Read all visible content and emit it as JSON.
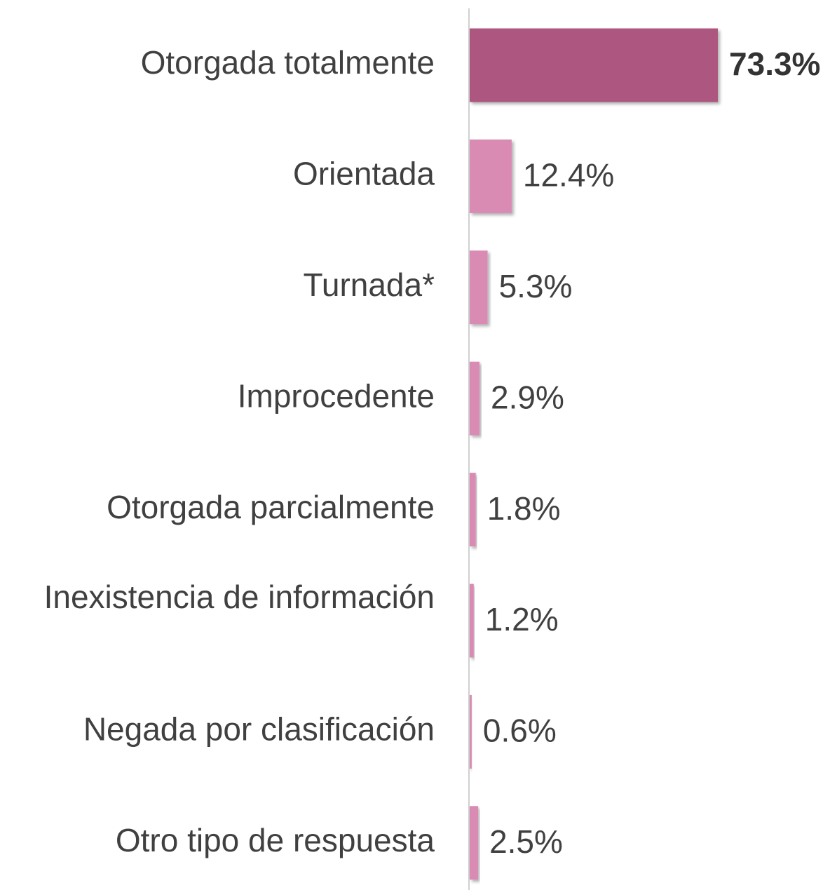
{
  "chart_data": {
    "type": "bar",
    "orientation": "horizontal",
    "categories": [
      "Otorgada totalmente",
      "Orientada",
      "Turnada*",
      "Improcedente",
      "Otorgada parcialmente",
      "Inexistencia de información",
      "Negada por clasificación",
      "Otro tipo de respuesta"
    ],
    "values": [
      73.3,
      12.4,
      5.3,
      2.9,
      1.8,
      1.2,
      0.6,
      2.5
    ],
    "value_labels": [
      "73.3%",
      "12.4%",
      "5.3%",
      "2.9%",
      "1.8%",
      "1.2%",
      "0.6%",
      "2.5%"
    ],
    "colors": [
      "#ad5680",
      "#d98bb4",
      "#d98bb4",
      "#d98bb4",
      "#d98bb4",
      "#d98bb4",
      "#d98bb4",
      "#d98bb4"
    ]
  }
}
